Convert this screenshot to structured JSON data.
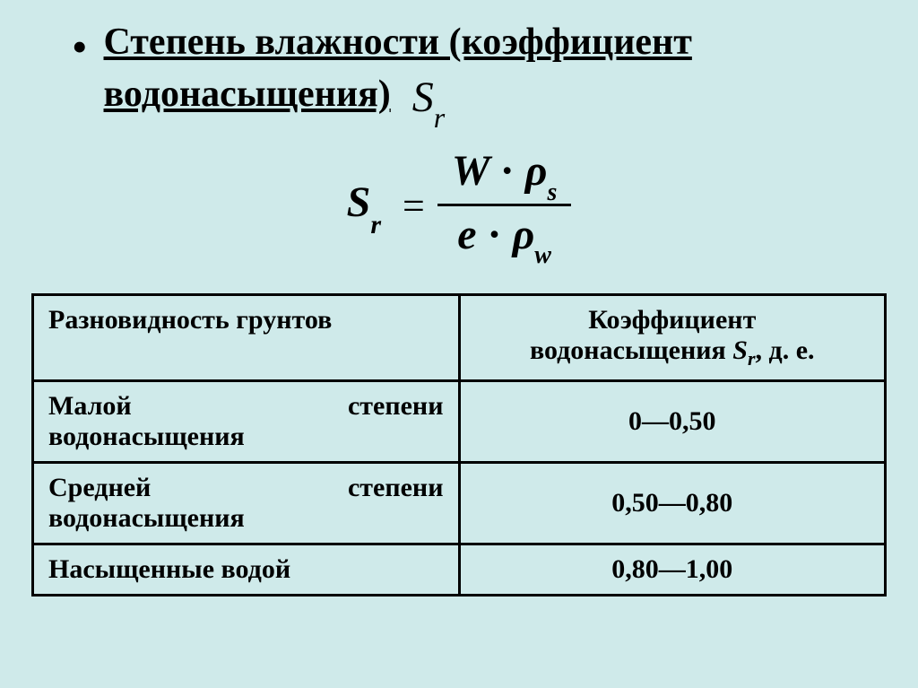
{
  "title": {
    "bullet": "•",
    "line1": "Степень влажности (коэффициент",
    "line2": "водонасыщения)",
    "symbol_S": "S",
    "symbol_r": "r"
  },
  "formula": {
    "lhs_S": "S",
    "lhs_r": "r",
    "eq": "=",
    "num_W": "W",
    "dot1": "·",
    "num_rho": "ρ",
    "num_s": "s",
    "den_e": "e",
    "dot2": "·",
    "den_rho": "ρ",
    "den_w": "w"
  },
  "table": {
    "header_col1": "Разновидность грунтов",
    "header_col2_line1": "Коэффициент",
    "header_col2_line2_pre": "водонасыщения ",
    "header_col2_S": "S",
    "header_col2_r": "r",
    "header_col2_unit": ", д. е.",
    "rows": [
      {
        "label_words": [
          "Малой",
          "степени",
          "водонасыщения"
        ],
        "value": "0—0,50"
      },
      {
        "label_words": [
          "Средней",
          "степени",
          "водонасыщения"
        ],
        "value": "0,50—0,80"
      },
      {
        "label_single": "Насыщенные водой",
        "value": "0,80—1,00"
      }
    ],
    "colors": {
      "background": "#cfeaea",
      "border": "#000000",
      "text": "#000000"
    },
    "col_width_pct": [
      50,
      50
    ],
    "font_size_pt": 30
  }
}
